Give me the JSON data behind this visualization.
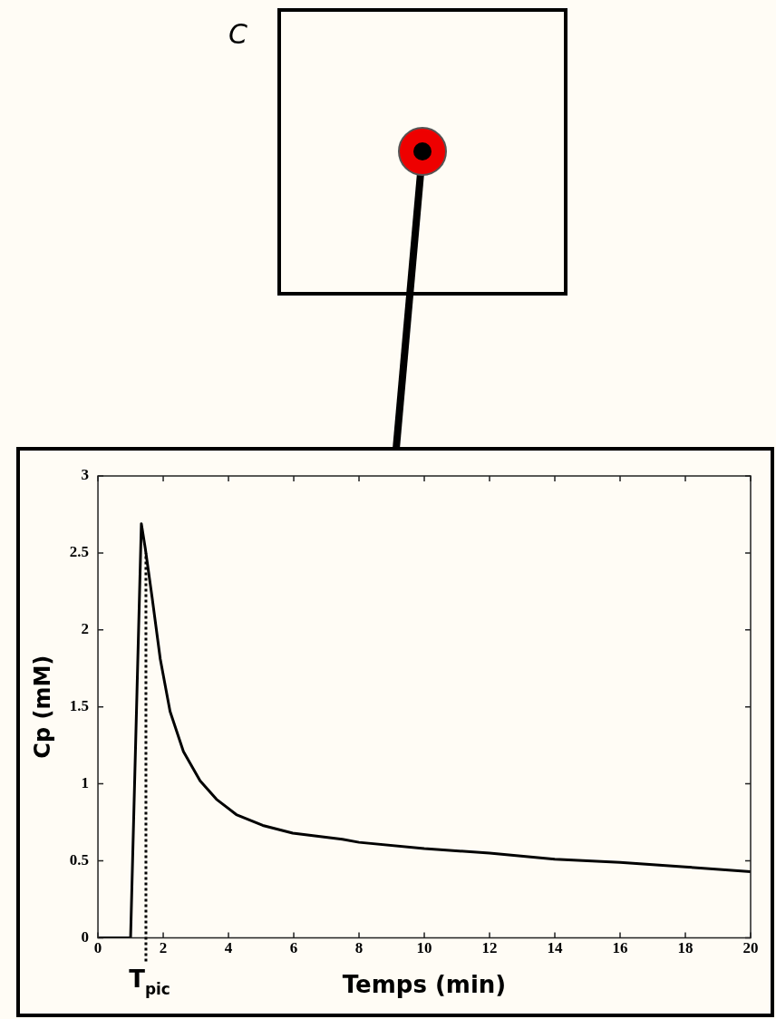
{
  "chart_data": {
    "type": "line",
    "xlabel": "Temps (min)",
    "ylabel": "Cp (mM)",
    "xlim": [
      0,
      20
    ],
    "xticks": [
      0,
      2,
      4,
      6,
      8,
      10,
      12,
      14,
      16,
      18,
      20
    ],
    "ylim": [
      0,
      3
    ],
    "yticks": [
      0,
      0.5,
      1,
      1.5,
      2,
      2.5,
      3
    ],
    "marker": "none",
    "line_style": "solid",
    "series": [
      {
        "color": "#000000",
        "x": [
          0,
          1.0,
          1.33,
          1.45,
          1.66,
          1.91,
          2.21,
          2.62,
          3.13,
          3.63,
          4.24,
          5.05,
          5.97,
          7.49,
          8,
          10,
          12,
          14,
          16,
          18,
          20
        ],
        "values": [
          0,
          0,
          2.69,
          2.53,
          2.21,
          1.81,
          1.47,
          1.21,
          1.02,
          0.9,
          0.8,
          0.73,
          0.68,
          0.64,
          0.62,
          0.58,
          0.55,
          0.51,
          0.49,
          0.46,
          0.43
        ]
      }
    ],
    "ref_lines": [
      {
        "axis": "x",
        "value": 1.47,
        "label": "T$_{pic}$",
        "line_style": "dotted",
        "color": "#000000"
      }
    ],
    "annotations": [
      "C"
    ]
  }
}
